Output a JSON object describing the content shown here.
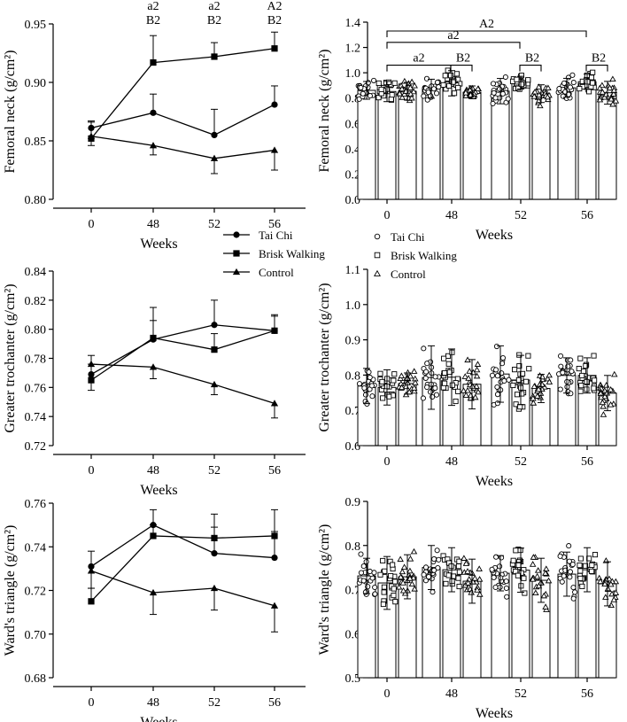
{
  "legend_line": [
    {
      "name": "Tai Chi",
      "marker": "circle"
    },
    {
      "name": "Brisk Walking",
      "marker": "square"
    },
    {
      "name": "Control",
      "marker": "triangle"
    }
  ],
  "legend_dots": [
    {
      "name": "Tai Chi",
      "marker": "circle"
    },
    {
      "name": "Brisk Walking",
      "marker": "square"
    },
    {
      "name": "Control",
      "marker": "triangle"
    }
  ],
  "chart_data": [
    {
      "id": "fn-line",
      "type": "line",
      "xlabel": "Weeks",
      "ylabel": "Femoral neck (g/cm²)",
      "categories": [
        "0",
        "48",
        "52",
        "56"
      ],
      "ylim": [
        0.8,
        0.95
      ],
      "yticks": [
        "0.80",
        "0.85",
        "0.90",
        "0.95"
      ],
      "series": [
        {
          "name": "Tai Chi",
          "marker": "circle",
          "values": [
            0.861,
            0.874,
            0.855,
            0.881
          ],
          "err": [
            0.015,
            0.016,
            0.022,
            0.016
          ]
        },
        {
          "name": "Brisk Walking",
          "marker": "square",
          "values": [
            0.852,
            0.917,
            0.922,
            0.929
          ],
          "err": [
            0.014,
            0.023,
            0.012,
            0.014
          ]
        },
        {
          "name": "Control",
          "marker": "triangle",
          "values": [
            0.854,
            0.846,
            0.835,
            0.842
          ],
          "err": [
            0.013,
            0.008,
            0.013,
            0.017
          ]
        }
      ],
      "annotations": [
        {
          "category": "48",
          "lines": [
            "a2",
            "B2"
          ]
        },
        {
          "category": "52",
          "lines": [
            "a2",
            "B2"
          ]
        },
        {
          "category": "56",
          "lines": [
            "A2",
            "B2"
          ]
        }
      ]
    },
    {
      "id": "fn-bar",
      "type": "bar",
      "xlabel": "Weeks",
      "ylabel": "Femoral neck (g/cm²)",
      "categories": [
        "0",
        "48",
        "52",
        "56"
      ],
      "ylim": [
        0.0,
        1.4
      ],
      "yticks": [
        "0.0",
        "0.2",
        "0.4",
        "0.6",
        "0.8",
        "1.0",
        "1.2",
        "1.4"
      ],
      "series": [
        {
          "name": "Tai Chi",
          "marker": "circle",
          "values": [
            0.861,
            0.874,
            0.855,
            0.881
          ],
          "err": [
            0.07,
            0.075,
            0.1,
            0.075
          ]
        },
        {
          "name": "Brisk Walking",
          "marker": "square",
          "values": [
            0.852,
            0.917,
            0.922,
            0.929
          ],
          "err": [
            0.08,
            0.1,
            0.05,
            0.06
          ]
        },
        {
          "name": "Control",
          "marker": "triangle",
          "values": [
            0.854,
            0.846,
            0.835,
            0.842
          ],
          "err": [
            0.07,
            0.05,
            0.07,
            0.09
          ]
        }
      ],
      "brackets": [
        {
          "label": "A2",
          "from": "0",
          "to": "56",
          "level": 1.33
        },
        {
          "label": "a2",
          "from": "0",
          "to": "52",
          "level": 1.24
        },
        {
          "label": "a2",
          "from": "0",
          "to": "48",
          "level": 1.06
        },
        {
          "label": "B2",
          "from": "48",
          "to": "48",
          "level": 1.06
        },
        {
          "label": "B2",
          "from": "52",
          "to": "52",
          "level": 1.06
        },
        {
          "label": "B2",
          "from": "56",
          "to": "56",
          "level": 1.06
        }
      ]
    },
    {
      "id": "gt-line",
      "type": "line",
      "xlabel": "Weeks",
      "ylabel": "Greater trochanter (g/cm²)",
      "categories": [
        "0",
        "48",
        "52",
        "56"
      ],
      "ylim": [
        0.72,
        0.84
      ],
      "yticks": [
        "0.72",
        "0.74",
        "0.76",
        "0.78",
        "0.80",
        "0.82",
        "0.84"
      ],
      "series": [
        {
          "name": "Tai Chi",
          "marker": "circle",
          "values": [
            0.769,
            0.793,
            0.803,
            0.799
          ],
          "err": [
            0.011,
            0.022,
            0.017,
            0.011
          ]
        },
        {
          "name": "Brisk Walking",
          "marker": "square",
          "values": [
            0.765,
            0.794,
            0.786,
            0.799
          ],
          "err": [
            0.011,
            0.012,
            0.011,
            0.01
          ]
        },
        {
          "name": "Control",
          "marker": "triangle",
          "values": [
            0.776,
            0.774,
            0.762,
            0.749
          ],
          "err": [
            0.006,
            0.008,
            0.007,
            0.01
          ]
        }
      ]
    },
    {
      "id": "gt-bar",
      "type": "bar",
      "xlabel": "Weeks",
      "ylabel": "Greater trochanter (g/cm²)",
      "categories": [
        "0",
        "48",
        "52",
        "56"
      ],
      "ylim": [
        0.6,
        1.1
      ],
      "yticks": [
        "0.6",
        "0.7",
        "0.8",
        "0.9",
        "1.0",
        "1.1"
      ],
      "series": [
        {
          "name": "Tai Chi",
          "marker": "circle",
          "values": [
            0.769,
            0.793,
            0.803,
            0.799
          ],
          "err": [
            0.05,
            0.09,
            0.08,
            0.05
          ]
        },
        {
          "name": "Brisk Walking",
          "marker": "square",
          "values": [
            0.765,
            0.794,
            0.786,
            0.799
          ],
          "err": [
            0.05,
            0.08,
            0.07,
            0.05
          ]
        },
        {
          "name": "Control",
          "marker": "triangle",
          "values": [
            0.776,
            0.774,
            0.762,
            0.749
          ],
          "err": [
            0.03,
            0.07,
            0.04,
            0.05
          ]
        }
      ]
    },
    {
      "id": "wt-line",
      "type": "line",
      "xlabel": "Weeks",
      "ylabel": "Ward's triangle (g/cm²)",
      "categories": [
        "0",
        "48",
        "52",
        "56"
      ],
      "ylim": [
        0.68,
        0.76
      ],
      "yticks": [
        "0.68",
        "0.70",
        "0.72",
        "0.74",
        "0.76"
      ],
      "series": [
        {
          "name": "Tai Chi",
          "marker": "circle",
          "values": [
            0.731,
            0.75,
            0.737,
            0.735
          ],
          "err": [
            0.01,
            0.007,
            0.012,
            0.012
          ]
        },
        {
          "name": "Brisk Walking",
          "marker": "square",
          "values": [
            0.715,
            0.745,
            0.744,
            0.745
          ],
          "err": [
            0.006,
            0.005,
            0.011,
            0.012
          ]
        },
        {
          "name": "Control",
          "marker": "triangle",
          "values": [
            0.729,
            0.719,
            0.721,
            0.713
          ],
          "err": [
            0.009,
            0.01,
            0.01,
            0.012
          ]
        }
      ]
    },
    {
      "id": "wt-bar",
      "type": "bar",
      "xlabel": "Weeks",
      "ylabel": "Ward's triangle (g/cm²)",
      "categories": [
        "0",
        "48",
        "52",
        "56"
      ],
      "ylim": [
        0.5,
        0.9
      ],
      "yticks": [
        "0.5",
        "0.6",
        "0.7",
        "0.8",
        "0.9"
      ],
      "series": [
        {
          "name": "Tai Chi",
          "marker": "circle",
          "values": [
            0.731,
            0.75,
            0.737,
            0.735
          ],
          "err": [
            0.04,
            0.05,
            0.04,
            0.05
          ]
        },
        {
          "name": "Brisk Walking",
          "marker": "square",
          "values": [
            0.715,
            0.745,
            0.744,
            0.745
          ],
          "err": [
            0.06,
            0.05,
            0.05,
            0.05
          ]
        },
        {
          "name": "Control",
          "marker": "triangle",
          "values": [
            0.729,
            0.719,
            0.721,
            0.713
          ],
          "err": [
            0.05,
            0.05,
            0.05,
            0.05
          ]
        }
      ]
    }
  ]
}
